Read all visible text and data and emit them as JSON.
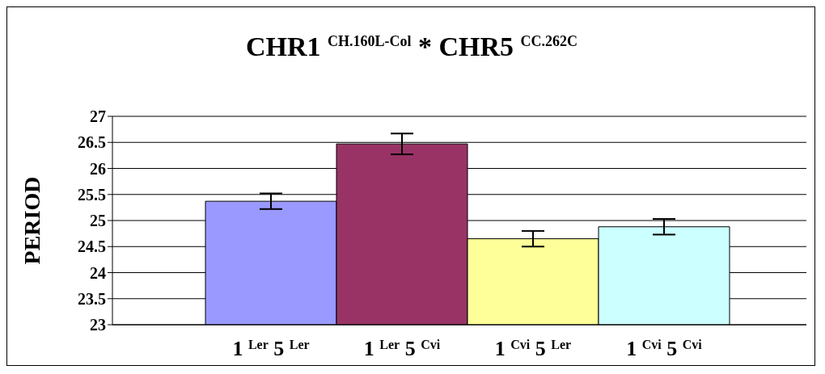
{
  "chart_data": {
    "type": "bar",
    "title": "CHR1 $^{CH.160L-Col}$ * CHR5 $^{CC.262C}$",
    "ylabel": "PERIOD",
    "categories": [
      "1 $^{Ler}$ 5 $^{Ler}$",
      "1 $^{Ler}$ 5 $^{Cvi}$",
      "1 $^{Cvi}$ 5 $^{Ler}$",
      "1 $^{Cvi}$ 5 $^{Cvi}$"
    ],
    "values": [
      25.37,
      26.47,
      24.65,
      24.88
    ],
    "errors": [
      0.15,
      0.2,
      0.15,
      0.15
    ],
    "colors": [
      "#9999ff",
      "#993366",
      "#ffff99",
      "#ccffff"
    ],
    "ylim": [
      23,
      27
    ],
    "yticks": [
      23,
      23.5,
      24,
      24.5,
      25,
      25.5,
      26,
      26.5,
      27
    ],
    "grid": "y",
    "legend": false
  }
}
